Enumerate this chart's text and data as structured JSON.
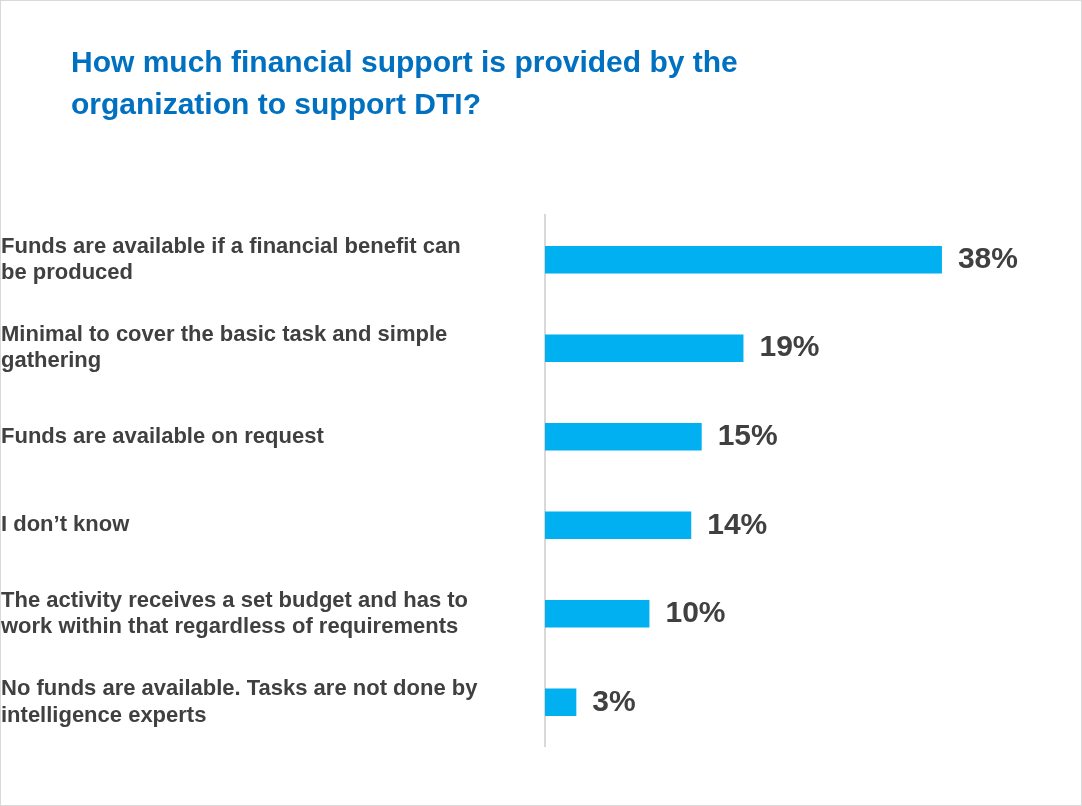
{
  "chart_data": {
    "type": "bar",
    "orientation": "horizontal",
    "title": "How much financial support is provided by the organization to support DTI?",
    "categories": [
      "Funds are available if a financial benefit can be produced",
      "Minimal to cover the basic task and simple gathering",
      "Funds are available on request",
      "I don’t know",
      "The activity receives a set budget and has to work within that regardless of requirements",
      "No funds are available. Tasks are not done by intelligence experts"
    ],
    "values": [
      38,
      19,
      15,
      14,
      10,
      3
    ],
    "value_labels": [
      "38%",
      "19%",
      "15%",
      "14%",
      "10%",
      "3%"
    ],
    "color": "#00b0f0"
  }
}
